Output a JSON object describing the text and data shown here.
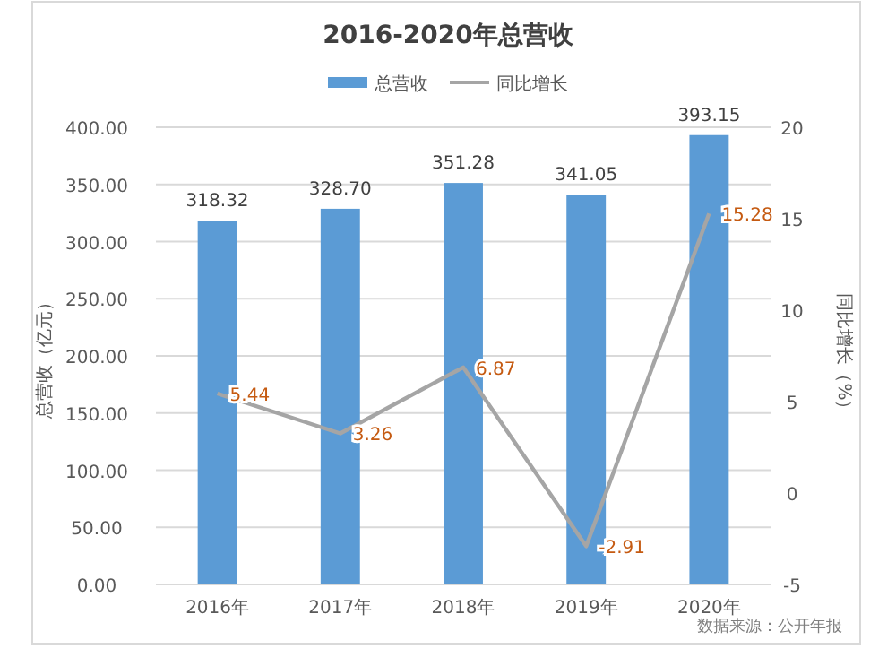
{
  "chart_data": {
    "type": "bar",
    "title": "2016-2020年总营收",
    "categories": [
      "2016年",
      "2017年",
      "2018年",
      "2019年",
      "2020年"
    ],
    "series": [
      {
        "name": "总营收",
        "color": "#5b9bd5",
        "values": [
          318.32,
          328.7,
          351.28,
          341.05,
          393.15
        ],
        "value_labels": [
          "318.32",
          "328.70",
          "351.28",
          "341.05",
          "393.15"
        ]
      },
      {
        "name": "同比增长",
        "type": "line",
        "axis": "y2",
        "color": "#a5a5a5",
        "values": [
          5.44,
          3.26,
          6.87,
          -2.91,
          15.28
        ],
        "value_labels": [
          "5.44",
          "3.26",
          "6.87",
          "-2.91",
          "15.28"
        ]
      }
    ],
    "ylabel": "总营收（亿元）",
    "y2label": "同比增长（%）",
    "ylim": [
      0,
      400
    ],
    "yticks": [
      {
        "value": 0,
        "label": "0.00"
      },
      {
        "value": 50,
        "label": "50.00"
      },
      {
        "value": 100,
        "label": "100.00"
      },
      {
        "value": 150,
        "label": "150.00"
      },
      {
        "value": 200,
        "label": "200.00"
      },
      {
        "value": 250,
        "label": "250.00"
      },
      {
        "value": 300,
        "label": "300.00"
      },
      {
        "value": 350,
        "label": "350.00"
      },
      {
        "value": 400,
        "label": "400.00"
      }
    ],
    "y2lim": [
      -5,
      20
    ],
    "y2ticks": [
      -5,
      0,
      5,
      10,
      15,
      20
    ],
    "grid": "y",
    "legend": "top",
    "marker": "none",
    "line_style": "solid",
    "annotations": [
      "数据来源：公开年报"
    ]
  }
}
